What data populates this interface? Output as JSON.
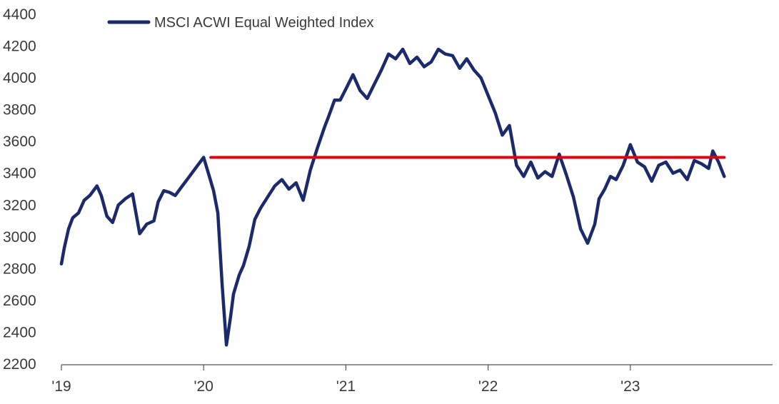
{
  "chart_data": {
    "type": "line",
    "legend_position": "top-left",
    "grid": false,
    "ylim": [
      2200,
      4400
    ],
    "xlim": [
      2019.0,
      2024.0
    ],
    "y_ticks": [
      2200,
      2400,
      2600,
      2800,
      3000,
      3200,
      3400,
      3600,
      3800,
      4000,
      4200,
      4400
    ],
    "y_tick_labels": [
      "2200",
      "2400",
      "2600",
      "2800",
      "3000",
      "3200",
      "3400",
      "3600",
      "3800",
      "4000",
      "4200",
      "4400"
    ],
    "x_ticks": [
      2019,
      2020,
      2021,
      2022,
      2023
    ],
    "x_tick_labels": [
      "'19",
      "'20",
      "'21",
      "'22",
      "'23"
    ],
    "series": [
      {
        "name": "MSCI ACWI Equal Weighted Index",
        "color": "#1b2a6b",
        "x": [
          2019.0,
          2019.02,
          2019.05,
          2019.08,
          2019.12,
          2019.16,
          2019.2,
          2019.25,
          2019.28,
          2019.32,
          2019.36,
          2019.4,
          2019.45,
          2019.5,
          2019.55,
          2019.6,
          2019.65,
          2019.68,
          2019.72,
          2019.76,
          2019.8,
          2019.85,
          2019.9,
          2019.95,
          2020.0,
          2020.04,
          2020.07,
          2020.1,
          2020.13,
          2020.16,
          2020.19,
          2020.21,
          2020.23,
          2020.25,
          2020.28,
          2020.32,
          2020.36,
          2020.4,
          2020.45,
          2020.5,
          2020.55,
          2020.6,
          2020.65,
          2020.7,
          2020.75,
          2020.8,
          2020.85,
          2020.88,
          2020.92,
          2020.96,
          2021.0,
          2021.05,
          2021.1,
          2021.15,
          2021.2,
          2021.25,
          2021.3,
          2021.35,
          2021.4,
          2021.45,
          2021.5,
          2021.55,
          2021.6,
          2021.65,
          2021.7,
          2021.75,
          2021.8,
          2021.85,
          2021.9,
          2021.95,
          2022.0,
          2022.05,
          2022.1,
          2022.15,
          2022.2,
          2022.25,
          2022.3,
          2022.35,
          2022.4,
          2022.45,
          2022.5,
          2022.55,
          2022.6,
          2022.65,
          2022.7,
          2022.75,
          2022.78,
          2022.82,
          2022.86,
          2022.9,
          2022.95,
          2023.0,
          2023.05,
          2023.1,
          2023.15,
          2023.2,
          2023.25,
          2023.3,
          2023.35,
          2023.4,
          2023.45,
          2023.5,
          2023.55,
          2023.58,
          2023.62,
          2023.66
        ],
        "y": [
          2830,
          2930,
          3050,
          3120,
          3150,
          3230,
          3260,
          3320,
          3260,
          3130,
          3090,
          3200,
          3240,
          3270,
          3020,
          3080,
          3100,
          3220,
          3290,
          3280,
          3260,
          3320,
          3380,
          3440,
          3500,
          3380,
          3290,
          3150,
          2700,
          2320,
          2500,
          2640,
          2700,
          2760,
          2820,
          2940,
          3110,
          3180,
          3250,
          3320,
          3360,
          3300,
          3340,
          3230,
          3420,
          3560,
          3690,
          3760,
          3860,
          3860,
          3930,
          4020,
          3920,
          3870,
          3960,
          4050,
          4150,
          4120,
          4180,
          4090,
          4130,
          4070,
          4100,
          4180,
          4150,
          4140,
          4060,
          4120,
          4050,
          4000,
          3890,
          3780,
          3640,
          3700,
          3450,
          3380,
          3470,
          3370,
          3410,
          3380,
          3520,
          3390,
          3250,
          3050,
          2960,
          3080,
          3240,
          3300,
          3380,
          3360,
          3450,
          3580,
          3470,
          3440,
          3350,
          3450,
          3470,
          3400,
          3420,
          3360,
          3480,
          3460,
          3430,
          3540,
          3470,
          3380
        ],
        "reference_line": null
      },
      {
        "color": "#e3000f",
        "x": [
          2020.05,
          2023.66
        ],
        "y": [
          3500,
          3500
        ]
      }
    ]
  }
}
